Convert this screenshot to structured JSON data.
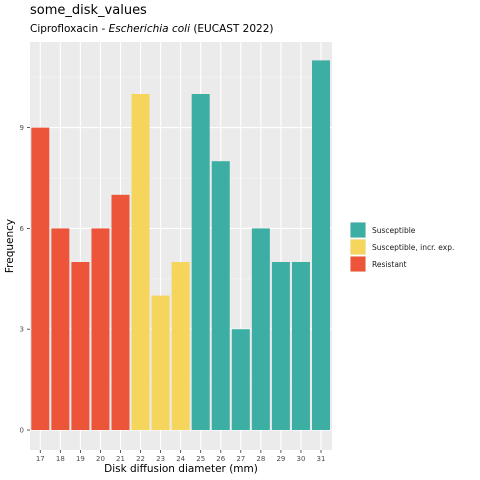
{
  "chart_data": {
    "type": "bar",
    "title": "some_disk_values",
    "subtitle_prefix": "Ciprofloxacin - ",
    "subtitle_organism": "Escherichia coli",
    "subtitle_suffix": " (EUCAST 2022)",
    "xlabel": "Disk diffusion diameter (mm)",
    "ylabel": "Frequency",
    "ylim": [
      0,
      11.5
    ],
    "yticks": [
      0,
      3,
      6,
      9
    ],
    "grid": true,
    "legend_position": "right",
    "categories": [
      "17",
      "18",
      "19",
      "20",
      "21",
      "22",
      "23",
      "24",
      "25",
      "26",
      "27",
      "28",
      "29",
      "30",
      "31"
    ],
    "values": [
      9,
      6,
      5,
      6,
      7,
      10,
      4,
      5,
      10,
      8,
      3,
      6,
      5,
      5,
      11
    ],
    "interpretation": [
      "R",
      "R",
      "R",
      "R",
      "R",
      "I",
      "I",
      "I",
      "S",
      "S",
      "S",
      "S",
      "S",
      "S",
      "S"
    ],
    "legend": [
      {
        "key": "S",
        "label": "Susceptible",
        "color": "#3CAEA3"
      },
      {
        "key": "I",
        "label": "Susceptible, incr. exp.",
        "color": "#F6D55C"
      },
      {
        "key": "R",
        "label": "Resistant",
        "color": "#ED553B"
      }
    ]
  }
}
